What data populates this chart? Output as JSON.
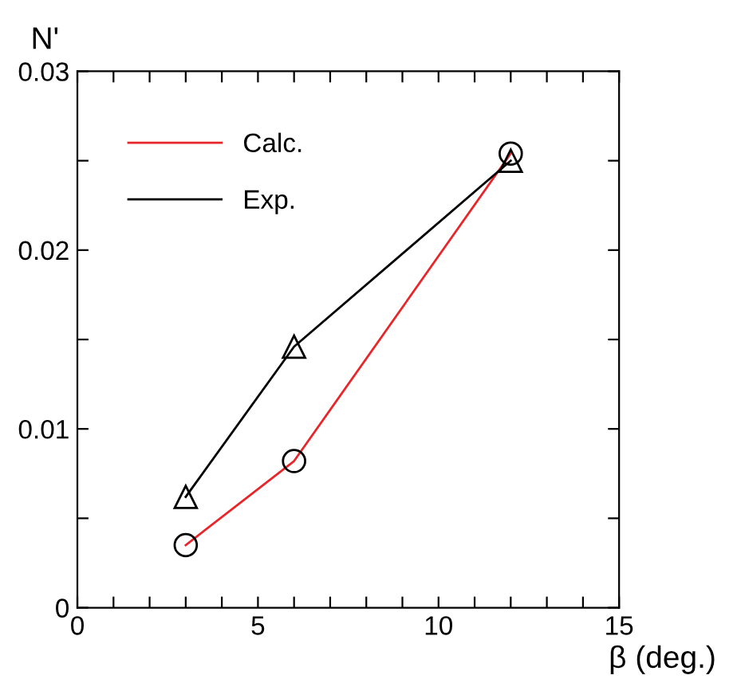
{
  "chart_data": {
    "type": "line",
    "xlabel": "β (deg.)",
    "ylabel": "N'",
    "x": [
      3,
      6,
      12
    ],
    "series": [
      {
        "name": "Calc.",
        "color": "#e8262a",
        "values": [
          0.0035,
          0.0082,
          0.0254
        ],
        "marker": "circle"
      },
      {
        "name": "Exp.",
        "color": "#000000",
        "values": [
          0.0062,
          0.0146,
          0.025
        ],
        "marker": "triangle"
      }
    ],
    "xlim": [
      0,
      15
    ],
    "ylim": [
      0,
      0.03
    ],
    "xticks": [
      0,
      {
        "value": 1,
        "label": null
      },
      {
        "value": 2,
        "label": null
      },
      {
        "value": 3,
        "label": null
      },
      {
        "value": 4,
        "label": null
      },
      5,
      {
        "value": 6,
        "label": null
      },
      {
        "value": 7,
        "label": null
      },
      {
        "value": 8,
        "label": null
      },
      {
        "value": 9,
        "label": null
      },
      10,
      {
        "value": 11,
        "label": null
      },
      {
        "value": 12,
        "label": null
      },
      {
        "value": 13,
        "label": null
      },
      {
        "value": 14,
        "label": null
      },
      15
    ],
    "yticks": [
      0,
      {
        "value": 0.005,
        "label": null
      },
      0.01,
      {
        "value": 0.015,
        "label": null
      },
      0.02,
      {
        "value": 0.025,
        "label": null
      },
      0.03
    ],
    "grid": false,
    "legend": "top left",
    "line_style": "solid"
  }
}
